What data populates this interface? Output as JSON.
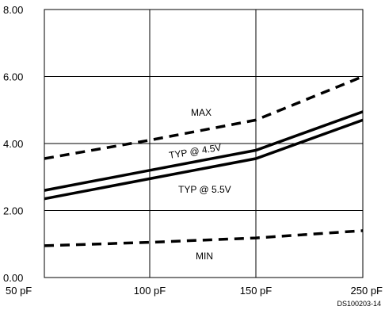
{
  "chart_data": {
    "type": "line",
    "x_categories": [
      "50 pF",
      "100 pF",
      "150 pF",
      "250 pF"
    ],
    "ylim": [
      0,
      8
    ],
    "y_ticks": [
      "0.00",
      "2.00",
      "4.00",
      "6.00",
      "8.00"
    ],
    "grid": true,
    "series": [
      {
        "name": "MAX",
        "style": "dashed",
        "values": [
          3.55,
          4.1,
          4.7,
          6.0
        ]
      },
      {
        "name": "TYP @ 4.5V",
        "style": "solid",
        "values": [
          2.6,
          3.2,
          3.8,
          4.95
        ]
      },
      {
        "name": "TYP @ 5.5V",
        "style": "solid",
        "values": [
          2.35,
          2.95,
          3.55,
          4.7
        ]
      },
      {
        "name": "MIN",
        "style": "dashed",
        "values": [
          0.95,
          1.05,
          1.18,
          1.4
        ]
      }
    ],
    "annotations": [
      {
        "text": "MAX"
      },
      {
        "text": "TYP @ 4.5V"
      },
      {
        "text": "TYP @ 5.5V"
      },
      {
        "text": "MIN"
      }
    ],
    "figure_code": "DS100203-14"
  }
}
